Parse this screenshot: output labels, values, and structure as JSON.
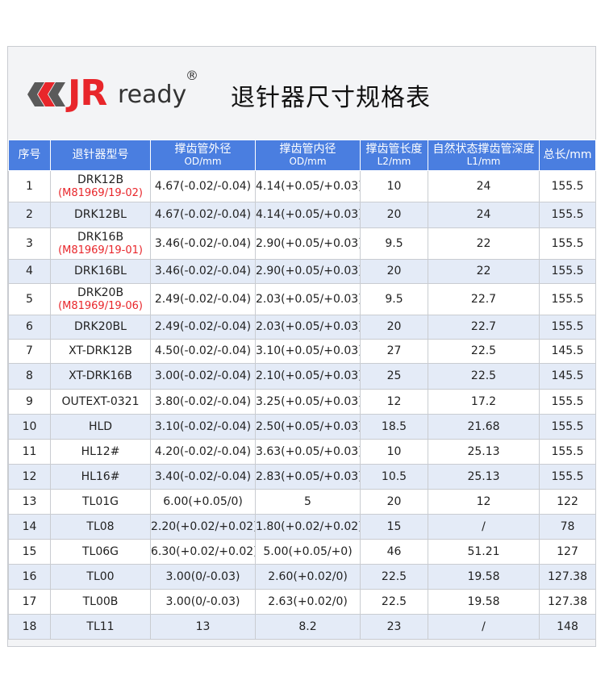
{
  "header": {
    "logo_text": "JR",
    "logo_suffix": "ready",
    "registered_mark": "®",
    "title": "退针器尺寸规格表"
  },
  "colors": {
    "brand_red": "#e8262b",
    "header_blue": "#4a7ee0",
    "row_alt": "#e4ebf7"
  },
  "table": {
    "columns": [
      {
        "label": "序号",
        "sub": ""
      },
      {
        "label": "退针器型号",
        "sub": ""
      },
      {
        "label": "撑齿管外径",
        "sub": "OD/mm"
      },
      {
        "label": "撑齿管内径",
        "sub": "OD/mm"
      },
      {
        "label": "撑齿管长度",
        "sub": "L2/mm"
      },
      {
        "label": "自然状态撑齿管深度",
        "sub": "L1/mm"
      },
      {
        "label": "总长/mm",
        "sub": ""
      }
    ],
    "rows": [
      {
        "no": "1",
        "model": "DRK12B",
        "model_sub": "(M81969/19-02)",
        "od": "4.67(-0.02/-0.04)",
        "id": "4.14(+0.05/+0.03)",
        "l2": "10",
        "l1": "24",
        "total": "155.5"
      },
      {
        "no": "2",
        "model": "DRK12BL",
        "model_sub": "",
        "od": "4.67(-0.02/-0.04)",
        "id": "4.14(+0.05/+0.03)",
        "l2": "20",
        "l1": "24",
        "total": "155.5"
      },
      {
        "no": "3",
        "model": "DRK16B",
        "model_sub": "(M81969/19-01)",
        "od": "3.46(-0.02/-0.04)",
        "id": "2.90(+0.05/+0.03)",
        "l2": "9.5",
        "l1": "22",
        "total": "155.5"
      },
      {
        "no": "4",
        "model": "DRK16BL",
        "model_sub": "",
        "od": "3.46(-0.02/-0.04)",
        "id": "2.90(+0.05/+0.03)",
        "l2": "20",
        "l1": "22",
        "total": "155.5"
      },
      {
        "no": "5",
        "model": "DRK20B",
        "model_sub": "(M81969/19-06)",
        "od": "2.49(-0.02/-0.04)",
        "id": "2.03(+0.05/+0.03)",
        "l2": "9.5",
        "l1": "22.7",
        "total": "155.5"
      },
      {
        "no": "6",
        "model": "DRK20BL",
        "model_sub": "",
        "od": "2.49(-0.02/-0.04)",
        "id": "2.03(+0.05/+0.03)",
        "l2": "20",
        "l1": "22.7",
        "total": "155.5"
      },
      {
        "no": "7",
        "model": "XT-DRK12B",
        "model_sub": "",
        "od": "4.50(-0.02/-0.04)",
        "id": "3.10(+0.05/+0.03)",
        "l2": "27",
        "l1": "22.5",
        "total": "145.5"
      },
      {
        "no": "8",
        "model": "XT-DRK16B",
        "model_sub": "",
        "od": "3.00(-0.02/-0.04)",
        "id": "2.10(+0.05/+0.03)",
        "l2": "25",
        "l1": "22.5",
        "total": "145.5"
      },
      {
        "no": "9",
        "model": "OUTEXT-0321",
        "model_sub": "",
        "od": "3.80(-0.02/-0.04)",
        "id": "3.25(+0.05/+0.03)",
        "l2": "12",
        "l1": "17.2",
        "total": "155.5"
      },
      {
        "no": "10",
        "model": "HLD",
        "model_sub": "",
        "od": "3.10(-0.02/-0.04)",
        "id": "2.50(+0.05/+0.03)",
        "l2": "18.5",
        "l1": "21.68",
        "total": "155.5"
      },
      {
        "no": "11",
        "model": "HL12#",
        "model_sub": "",
        "od": "4.20(-0.02/-0.04)",
        "id": "3.63(+0.05/+0.03)",
        "l2": "10",
        "l1": "25.13",
        "total": "155.5"
      },
      {
        "no": "12",
        "model": "HL16#",
        "model_sub": "",
        "od": "3.40(-0.02/-0.04)",
        "id": "2.83(+0.05/+0.03)",
        "l2": "10.5",
        "l1": "25.13",
        "total": "155.5"
      },
      {
        "no": "13",
        "model": "TL01G",
        "model_sub": "",
        "od": "6.00(+0.05/0)",
        "id": "5",
        "l2": "20",
        "l1": "12",
        "total": "122"
      },
      {
        "no": "14",
        "model": "TL08",
        "model_sub": "",
        "od": "2.20(+0.02/+0.02)",
        "id": "1.80(+0.02/+0.02)",
        "l2": "15",
        "l1": "/",
        "total": "78"
      },
      {
        "no": "15",
        "model": "TL06G",
        "model_sub": "",
        "od": "6.30(+0.02/+0.02)",
        "id": "5.00(+0.05/+0)",
        "l2": "46",
        "l1": "51.21",
        "total": "127"
      },
      {
        "no": "16",
        "model": "TL00",
        "model_sub": "",
        "od": "3.00(0/-0.03)",
        "id": "2.60(+0.02/0)",
        "l2": "22.5",
        "l1": "19.58",
        "total": "127.38"
      },
      {
        "no": "17",
        "model": "TL00B",
        "model_sub": "",
        "od": "3.00(0/-0.03)",
        "id": "2.63(+0.02/0)",
        "l2": "22.5",
        "l1": "19.58",
        "total": "127.38"
      },
      {
        "no": "18",
        "model": "TL11",
        "model_sub": "",
        "od": "13",
        "id": "8.2",
        "l2": "23",
        "l1": "/",
        "total": "148"
      }
    ]
  }
}
